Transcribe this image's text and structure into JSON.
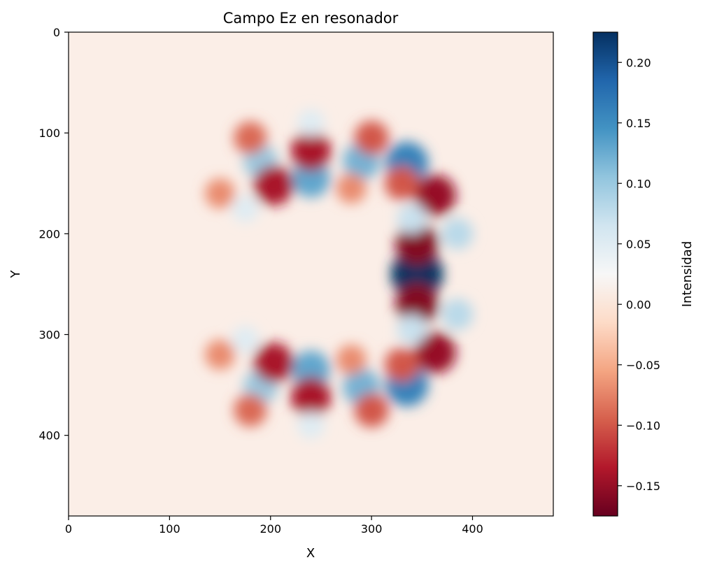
{
  "chart_data": {
    "type": "heatmap",
    "title": "Campo Ez en resonador",
    "xlabel": "X",
    "ylabel": "Y",
    "xlim": [
      0,
      480
    ],
    "ylim": [
      480,
      0
    ],
    "xticks": [
      0,
      100,
      200,
      300,
      400
    ],
    "yticks": [
      0,
      100,
      200,
      300,
      400
    ],
    "grid": false,
    "colormap": "RdBu",
    "colorbar": {
      "label": "Intensidad",
      "range": [
        -0.175,
        0.225
      ],
      "ticks": [
        0.2,
        0.15,
        0.1,
        0.05,
        0.0,
        -0.05,
        -0.1,
        -0.15
      ],
      "tick_labels": [
        "0.20",
        "0.15",
        "0.10",
        "0.05",
        "0.00",
        "−0.05",
        "−0.10",
        "−0.15"
      ],
      "colors": [
        "#67001f",
        "#b2182b",
        "#d6604d",
        "#f4a582",
        "#fddbc7",
        "#f7f7f7",
        "#d1e5f0",
        "#92c5de",
        "#4393c3",
        "#2166ac",
        "#053061"
      ]
    },
    "resonator": {
      "center": [
        240,
        240
      ],
      "radius": 105
    },
    "features": [
      {
        "x": 345,
        "y": 240,
        "value": 0.225
      },
      {
        "x": 345,
        "y": 210,
        "value": -0.16
      },
      {
        "x": 345,
        "y": 270,
        "value": -0.16
      },
      {
        "x": 335,
        "y": 130,
        "value": 0.16
      },
      {
        "x": 335,
        "y": 350,
        "value": 0.16
      },
      {
        "x": 363,
        "y": 162,
        "value": -0.15
      },
      {
        "x": 363,
        "y": 318,
        "value": -0.15
      },
      {
        "x": 240,
        "y": 145,
        "value": 0.13
      },
      {
        "x": 240,
        "y": 335,
        "value": 0.13
      },
      {
        "x": 240,
        "y": 118,
        "value": -0.14
      },
      {
        "x": 240,
        "y": 362,
        "value": -0.14
      },
      {
        "x": 290,
        "y": 128,
        "value": 0.12
      },
      {
        "x": 290,
        "y": 352,
        "value": 0.12
      },
      {
        "x": 190,
        "y": 128,
        "value": 0.1
      },
      {
        "x": 190,
        "y": 352,
        "value": 0.1
      },
      {
        "x": 203,
        "y": 152,
        "value": -0.14
      },
      {
        "x": 203,
        "y": 328,
        "value": -0.14
      },
      {
        "x": 300,
        "y": 105,
        "value": -0.1
      },
      {
        "x": 300,
        "y": 375,
        "value": -0.1
      },
      {
        "x": 180,
        "y": 105,
        "value": -0.09
      },
      {
        "x": 180,
        "y": 375,
        "value": -0.09
      },
      {
        "x": 240,
        "y": 90,
        "value": 0.05
      },
      {
        "x": 240,
        "y": 390,
        "value": 0.05
      },
      {
        "x": 340,
        "y": 185,
        "value": 0.07
      },
      {
        "x": 340,
        "y": 295,
        "value": 0.07
      },
      {
        "x": 385,
        "y": 200,
        "value": 0.08
      },
      {
        "x": 385,
        "y": 280,
        "value": 0.08
      },
      {
        "x": 330,
        "y": 150,
        "value": -0.1
      },
      {
        "x": 330,
        "y": 330,
        "value": -0.1
      },
      {
        "x": 150,
        "y": 160,
        "value": -0.07
      },
      {
        "x": 150,
        "y": 320,
        "value": -0.07
      },
      {
        "x": 175,
        "y": 175,
        "value": 0.05
      },
      {
        "x": 175,
        "y": 305,
        "value": 0.05
      },
      {
        "x": 280,
        "y": 155,
        "value": -0.07
      },
      {
        "x": 280,
        "y": 325,
        "value": -0.07
      }
    ]
  }
}
